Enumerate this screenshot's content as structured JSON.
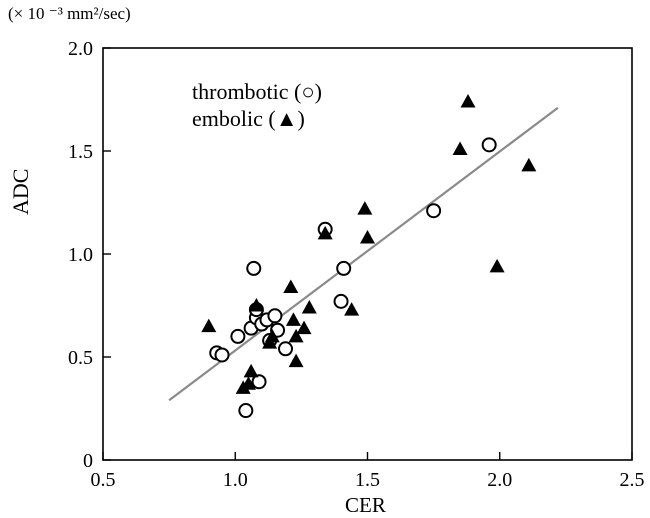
{
  "chart_data": {
    "type": "scatter",
    "unit_label": "(× 10 ⁻³ mm²/sec)",
    "xlabel": "CER",
    "ylabel": "ADC",
    "xlim": [
      0.5,
      2.5
    ],
    "ylim": [
      0,
      2.0
    ],
    "x_ticks": [
      "0.5",
      "1.0",
      "1.5",
      "2.0",
      "2.5"
    ],
    "y_ticks": [
      "0",
      "0.5",
      "1.0",
      "1.5",
      "2.0"
    ],
    "x_tick_values": [
      0.5,
      1.0,
      1.5,
      2.0,
      2.5
    ],
    "y_tick_values": [
      0,
      0.5,
      1.0,
      1.5,
      2.0
    ],
    "legend": [
      "thrombotic (○)",
      "embolic (▲)"
    ],
    "regression_line": {
      "x": [
        0.75,
        2.22
      ],
      "y": [
        0.29,
        1.71
      ]
    },
    "series": [
      {
        "name": "thrombotic",
        "marker": "open-circle",
        "points": [
          [
            0.93,
            0.52
          ],
          [
            0.95,
            0.51
          ],
          [
            1.01,
            0.6
          ],
          [
            1.04,
            0.24
          ],
          [
            1.06,
            0.64
          ],
          [
            1.07,
            0.93
          ],
          [
            1.08,
            0.69
          ],
          [
            1.09,
            0.38
          ],
          [
            1.1,
            0.66
          ],
          [
            1.12,
            0.68
          ],
          [
            1.13,
            0.58
          ],
          [
            1.15,
            0.7
          ],
          [
            1.16,
            0.63
          ],
          [
            1.19,
            0.54
          ],
          [
            1.34,
            1.12
          ],
          [
            1.4,
            0.77
          ],
          [
            1.41,
            0.93
          ],
          [
            1.75,
            1.21
          ],
          [
            1.96,
            1.53
          ],
          [
            1.08,
            0.73
          ]
        ]
      },
      {
        "name": "embolic",
        "marker": "filled-triangle",
        "points": [
          [
            0.9,
            0.65
          ],
          [
            1.03,
            0.35
          ],
          [
            1.05,
            0.37
          ],
          [
            1.06,
            0.43
          ],
          [
            1.08,
            0.75
          ],
          [
            1.13,
            0.57
          ],
          [
            1.14,
            0.6
          ],
          [
            1.21,
            0.84
          ],
          [
            1.22,
            0.68
          ],
          [
            1.23,
            0.48
          ],
          [
            1.23,
            0.6
          ],
          [
            1.26,
            0.64
          ],
          [
            1.28,
            0.74
          ],
          [
            1.34,
            1.1
          ],
          [
            1.44,
            0.73
          ],
          [
            1.49,
            1.22
          ],
          [
            1.5,
            1.08
          ],
          [
            1.85,
            1.51
          ],
          [
            1.88,
            1.74
          ],
          [
            1.99,
            0.94
          ],
          [
            2.11,
            1.43
          ]
        ]
      }
    ]
  }
}
